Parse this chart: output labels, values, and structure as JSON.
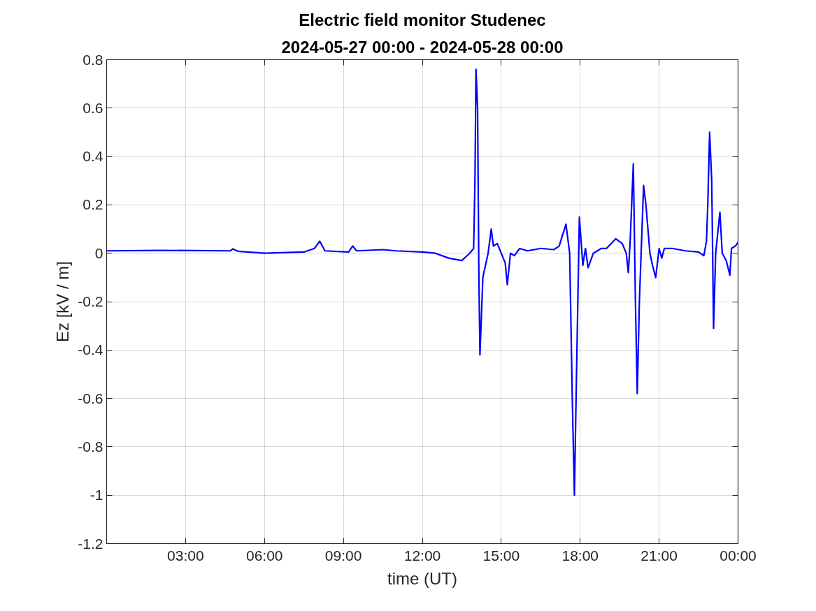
{
  "chart_data": {
    "type": "line",
    "title": "Electric field monitor Studenec",
    "subtitle": "2024-05-27 00:00 - 2024-05-28 00:00",
    "xlabel": "time (UT)",
    "ylabel": "Ez [kV / m]",
    "x": [
      0,
      2,
      4.7,
      4.8,
      5.0,
      6.0,
      7.5,
      7.9,
      8.1,
      8.3,
      9.2,
      9.35,
      9.5,
      10.5,
      11,
      12,
      12.5,
      13,
      13.5,
      13.8,
      13.95,
      14.0,
      14.04,
      14.1,
      14.15,
      14.19,
      14.3,
      14.5,
      14.62,
      14.7,
      14.85,
      15.0,
      15.15,
      15.23,
      15.35,
      15.5,
      15.7,
      16.0,
      16.5,
      17.0,
      17.2,
      17.46,
      17.6,
      17.7,
      17.78,
      17.86,
      17.97,
      18.1,
      18.2,
      18.3,
      18.5,
      18.8,
      19.0,
      19.35,
      19.6,
      19.75,
      19.83,
      19.9,
      20.02,
      20.1,
      20.17,
      20.25,
      20.41,
      20.5,
      20.65,
      20.75,
      20.87,
      21.0,
      21.1,
      21.2,
      21.5,
      22.0,
      22.5,
      22.7,
      22.8,
      22.85,
      22.92,
      23.0,
      23.07,
      23.15,
      23.31,
      23.4,
      23.55,
      23.69,
      23.75,
      23.9,
      24.0
    ],
    "series": [
      {
        "color": "#0000ff",
        "values": [
          0.01,
          0.012,
          0.01,
          0.018,
          0.008,
          0.0,
          0.005,
          0.02,
          0.05,
          0.01,
          0.005,
          0.03,
          0.01,
          0.015,
          0.01,
          0.005,
          0.0,
          -0.02,
          -0.03,
          0.0,
          0.02,
          0.3,
          0.76,
          0.6,
          -0.1,
          -0.42,
          -0.1,
          0.0,
          0.1,
          0.03,
          0.04,
          0.0,
          -0.04,
          -0.13,
          0.0,
          -0.01,
          0.02,
          0.01,
          0.02,
          0.015,
          0.03,
          0.12,
          0.0,
          -0.6,
          -1.0,
          -0.5,
          0.15,
          -0.05,
          0.02,
          -0.06,
          0.0,
          0.02,
          0.02,
          0.06,
          0.04,
          0.0,
          -0.08,
          0.05,
          0.37,
          -0.2,
          -0.58,
          -0.2,
          0.28,
          0.2,
          0.0,
          -0.05,
          -0.1,
          0.02,
          -0.02,
          0.02,
          0.02,
          0.01,
          0.005,
          -0.01,
          0.05,
          0.2,
          0.5,
          0.3,
          -0.31,
          0.0,
          0.17,
          0.0,
          -0.03,
          -0.09,
          0.02,
          0.03,
          0.045
        ]
      }
    ],
    "xlim": [
      0,
      24
    ],
    "xticks": [
      {
        "value": 3,
        "label": "03:00"
      },
      {
        "value": 6,
        "label": "06:00"
      },
      {
        "value": 9,
        "label": "09:00"
      },
      {
        "value": 12,
        "label": "12:00"
      },
      {
        "value": 15,
        "label": "15:00"
      },
      {
        "value": 18,
        "label": "18:00"
      },
      {
        "value": 21,
        "label": "21:00"
      },
      {
        "value": 24,
        "label": "00:00"
      }
    ],
    "ylim": [
      -1.2,
      0.8
    ],
    "yticks": [
      -1.2,
      -1,
      -0.8,
      -0.6,
      -0.4,
      -0.2,
      0,
      0.2,
      0.4,
      0.6,
      0.8
    ],
    "grid": true,
    "marker": "none",
    "line_style": "solid"
  }
}
